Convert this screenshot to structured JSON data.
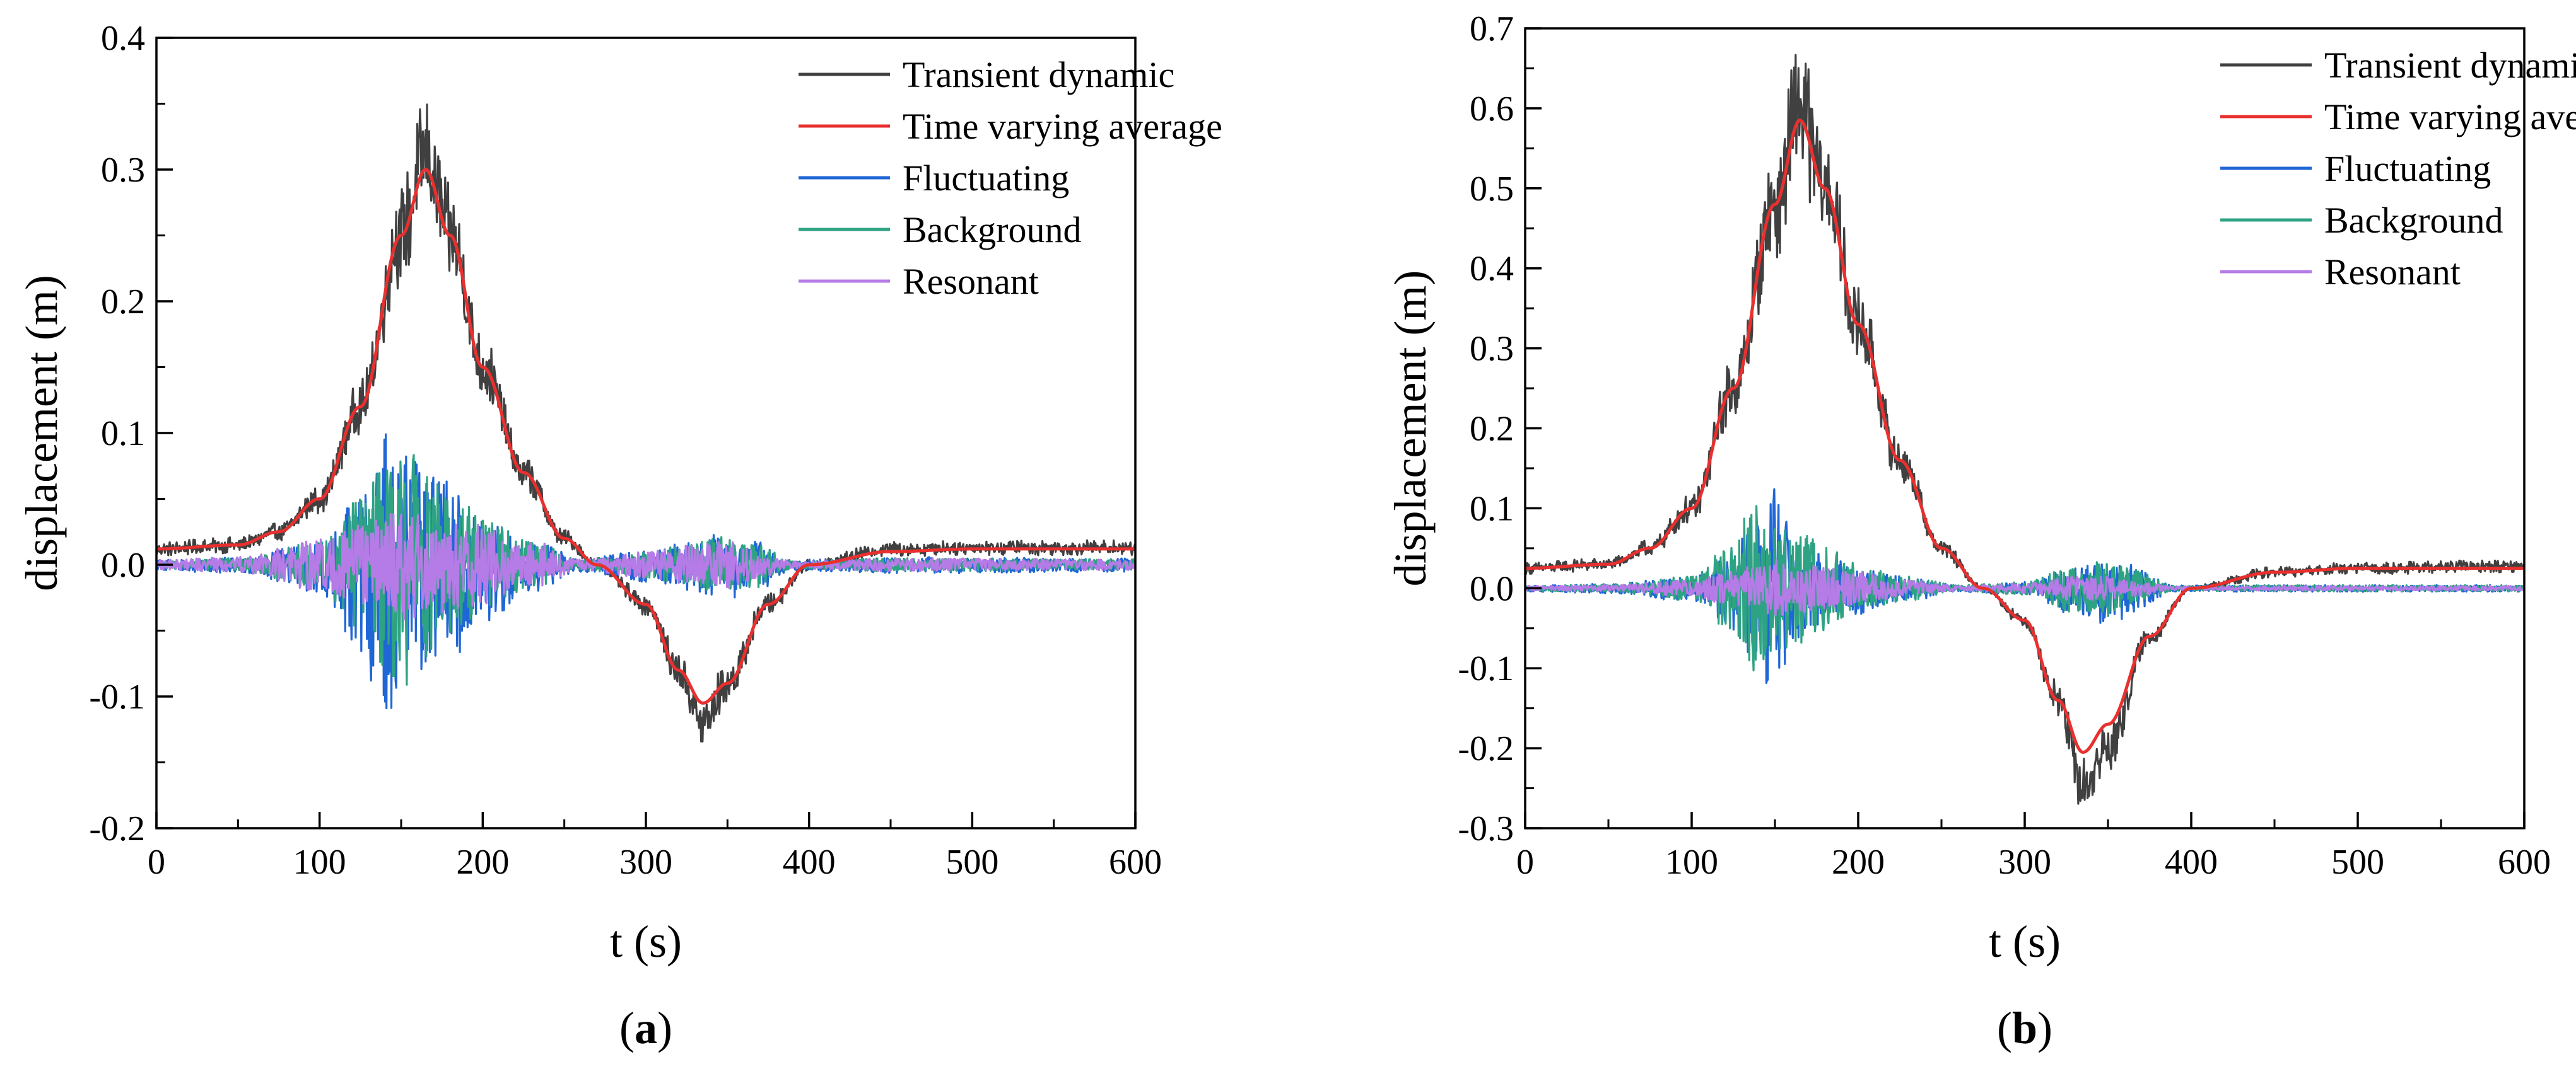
{
  "chart_data": [
    {
      "type": "line",
      "panel_label": "a",
      "panel_label_text": {
        "open": "(",
        "letter": "a",
        "close": ")"
      },
      "xlabel": "t (s)",
      "ylabel": "displacement (m)",
      "xlim": [
        0,
        600
      ],
      "ylim": [
        -0.2,
        0.4
      ],
      "x_ticks": [
        0,
        100,
        200,
        300,
        400,
        500,
        600
      ],
      "x_tick_labels": [
        "0",
        "100",
        "200",
        "300",
        "400",
        "500",
        "600"
      ],
      "y_ticks": [
        -0.2,
        -0.1,
        0.0,
        0.1,
        0.2,
        0.3,
        0.4
      ],
      "y_tick_labels": [
        "-0.2",
        "-0.1",
        "0.0",
        "0.1",
        "0.2",
        "0.3",
        "0.4"
      ],
      "grid": false,
      "legend_position": "top-right",
      "legend": [
        "Transient dynamic",
        "Time varying average",
        "Fluctuating",
        "Background",
        "Resonant"
      ],
      "series": [
        {
          "name": "Transient dynamic",
          "color": "#404040",
          "x": [
            0,
            50,
            75,
            100,
            125,
            150,
            165,
            180,
            200,
            225,
            250,
            270,
            300,
            320,
            335,
            350,
            375,
            400,
            450,
            500,
            600
          ],
          "values": [
            0.012,
            0.015,
            0.025,
            0.05,
            0.12,
            0.25,
            0.31,
            0.25,
            0.15,
            0.07,
            0.02,
            0.0,
            -0.03,
            -0.08,
            -0.12,
            -0.09,
            -0.03,
            0.0,
            0.012,
            0.013,
            0.013
          ],
          "noise_peak_value": 0.385,
          "min_value": -0.15
        },
        {
          "name": "Time varying average",
          "color": "#e8302f",
          "x": [
            0,
            50,
            75,
            100,
            125,
            150,
            165,
            180,
            200,
            225,
            250,
            270,
            300,
            320,
            335,
            350,
            375,
            400,
            450,
            500,
            600
          ],
          "values": [
            0.012,
            0.015,
            0.025,
            0.05,
            0.12,
            0.25,
            0.3,
            0.25,
            0.15,
            0.07,
            0.02,
            0.0,
            -0.03,
            -0.08,
            -0.105,
            -0.09,
            -0.03,
            0.0,
            0.01,
            0.012,
            0.012
          ]
        },
        {
          "name": "Fluctuating",
          "color": "#1f66d6",
          "x": [
            0,
            50,
            100,
            125,
            140,
            150,
            165,
            185,
            200,
            230,
            260,
            300,
            330,
            350,
            365,
            390,
            450,
            600
          ],
          "amplitude": [
            0.004,
            0.006,
            0.02,
            0.06,
            0.11,
            0.09,
            0.08,
            0.06,
            0.04,
            0.02,
            0.005,
            0.012,
            0.02,
            0.025,
            0.02,
            0.004,
            0.006,
            0.005
          ],
          "max_value": 0.1,
          "min_value": -0.122
        },
        {
          "name": "Background",
          "color": "#2ea383",
          "x": [
            0,
            50,
            100,
            125,
            140,
            150,
            165,
            185,
            200,
            230,
            260,
            300,
            330,
            350,
            365,
            390,
            450,
            600
          ],
          "amplitude": [
            0.003,
            0.005,
            0.018,
            0.05,
            0.08,
            0.1,
            0.07,
            0.05,
            0.035,
            0.018,
            0.004,
            0.01,
            0.018,
            0.022,
            0.018,
            0.003,
            0.005,
            0.004
          ]
        },
        {
          "name": "Resonant",
          "color": "#b57be6",
          "x": [
            0,
            50,
            100,
            125,
            140,
            150,
            165,
            185,
            200,
            230,
            260,
            300,
            330,
            350,
            365,
            390,
            450,
            600
          ],
          "amplitude": [
            0.004,
            0.006,
            0.02,
            0.03,
            0.04,
            0.045,
            0.04,
            0.035,
            0.03,
            0.018,
            0.004,
            0.01,
            0.015,
            0.018,
            0.012,
            0.003,
            0.005,
            0.004
          ]
        }
      ]
    },
    {
      "type": "line",
      "panel_label": "b",
      "panel_label_text": {
        "open": "(",
        "letter": "b",
        "close": ")"
      },
      "xlabel": "t (s)",
      "ylabel": "displacement (m)",
      "xlim": [
        0,
        600
      ],
      "ylim": [
        -0.3,
        0.7
      ],
      "x_ticks": [
        0,
        100,
        200,
        300,
        400,
        500,
        600
      ],
      "x_tick_labels": [
        "0",
        "100",
        "200",
        "300",
        "400",
        "500",
        "600"
      ],
      "y_ticks": [
        -0.3,
        -0.2,
        -0.1,
        0.0,
        0.1,
        0.2,
        0.3,
        0.4,
        0.5,
        0.6,
        0.7
      ],
      "y_tick_labels": [
        "-0.3",
        "-0.2",
        "-0.1",
        "0.0",
        "0.1",
        "0.2",
        "0.3",
        "0.4",
        "0.5",
        "0.6",
        "0.7"
      ],
      "grid": false,
      "legend_position": "top-right",
      "legend": [
        "Transient dynamic",
        "Time varying average",
        "Fluctuating",
        "Background",
        "Resonant"
      ],
      "series": [
        {
          "name": "Transient dynamic",
          "color": "#404040",
          "x": [
            0,
            50,
            75,
            100,
            125,
            150,
            165,
            180,
            200,
            225,
            250,
            275,
            300,
            320,
            335,
            350,
            375,
            400,
            450,
            500,
            600
          ],
          "values": [
            0.025,
            0.03,
            0.05,
            0.1,
            0.25,
            0.48,
            0.6,
            0.5,
            0.33,
            0.16,
            0.05,
            0.0,
            -0.04,
            -0.14,
            -0.25,
            -0.2,
            -0.06,
            0.0,
            0.02,
            0.025,
            0.028
          ],
          "noise_peak_value": 0.655,
          "min_value": -0.26
        },
        {
          "name": "Time varying average",
          "color": "#e8302f",
          "x": [
            0,
            50,
            75,
            100,
            125,
            150,
            165,
            180,
            200,
            225,
            250,
            275,
            300,
            320,
            335,
            350,
            375,
            400,
            450,
            500,
            600
          ],
          "values": [
            0.025,
            0.03,
            0.05,
            0.1,
            0.25,
            0.48,
            0.585,
            0.5,
            0.33,
            0.16,
            0.05,
            0.0,
            -0.04,
            -0.14,
            -0.205,
            -0.17,
            -0.06,
            0.0,
            0.02,
            0.025,
            0.025
          ]
        },
        {
          "name": "Fluctuating",
          "color": "#1f66d6",
          "x": [
            0,
            50,
            100,
            120,
            140,
            150,
            165,
            185,
            200,
            230,
            260,
            300,
            330,
            350,
            365,
            390,
            450,
            600
          ],
          "amplitude": [
            0.004,
            0.006,
            0.015,
            0.04,
            0.09,
            0.13,
            0.06,
            0.04,
            0.03,
            0.015,
            0.004,
            0.008,
            0.03,
            0.04,
            0.03,
            0.004,
            0.004,
            0.004
          ],
          "max_value": 0.135
        },
        {
          "name": "Background",
          "color": "#2ea383",
          "x": [
            0,
            50,
            100,
            120,
            140,
            150,
            165,
            185,
            200,
            230,
            260,
            300,
            330,
            350,
            365,
            390,
            450,
            600
          ],
          "amplitude": [
            0.003,
            0.005,
            0.015,
            0.05,
            0.11,
            0.08,
            0.07,
            0.05,
            0.03,
            0.015,
            0.004,
            0.008,
            0.03,
            0.035,
            0.025,
            0.003,
            0.004,
            0.004
          ],
          "min_value": -0.115
        },
        {
          "name": "Resonant",
          "color": "#b57be6",
          "x": [
            0,
            50,
            100,
            120,
            140,
            150,
            165,
            185,
            200,
            230,
            260,
            300,
            330,
            350,
            365,
            390,
            450,
            600
          ],
          "amplitude": [
            0.003,
            0.004,
            0.01,
            0.02,
            0.03,
            0.035,
            0.03,
            0.025,
            0.02,
            0.01,
            0.003,
            0.006,
            0.015,
            0.015,
            0.01,
            0.002,
            0.003,
            0.003
          ]
        }
      ]
    }
  ]
}
